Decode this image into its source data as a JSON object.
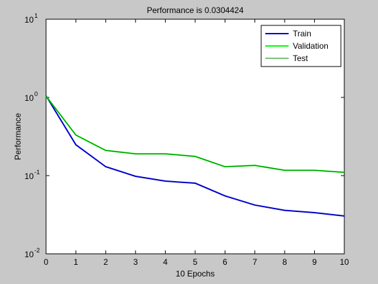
{
  "chart_data": {
    "type": "line",
    "title": "Performance is 0.0304424",
    "x_label": "10 Epochs",
    "y_label": "Performance",
    "x": [
      0,
      1,
      2,
      3,
      4,
      5,
      6,
      7,
      8,
      9,
      10
    ],
    "series": [
      {
        "name": "Train",
        "color": "#0000cc",
        "width": 2,
        "values": [
          1.05,
          0.248,
          0.13,
          0.098,
          0.085,
          0.08,
          0.055,
          0.042,
          0.036,
          0.0336,
          0.0304424
        ]
      },
      {
        "name": "Validation",
        "color": "#00ff00",
        "width": 2,
        "values": [
          1.04,
          0.33,
          0.21,
          0.19,
          0.19,
          0.176,
          0.13,
          0.135,
          0.117,
          0.117,
          0.11
        ]
      },
      {
        "name": "Test",
        "color": "#008000",
        "width": 1,
        "values": [
          1.04,
          0.33,
          0.21,
          0.19,
          0.19,
          0.176,
          0.13,
          0.135,
          0.117,
          0.117,
          0.11
        ]
      }
    ],
    "xlim": [
      0,
      10
    ],
    "xticks": [
      0,
      1,
      2,
      3,
      4,
      5,
      6,
      7,
      8,
      9,
      10
    ],
    "ylim": [
      0.01,
      10
    ],
    "yticks": [
      {
        "value": 0.01,
        "label": "10",
        "exponent": "-2"
      },
      {
        "value": 0.1,
        "label": "10",
        "exponent": "-1"
      },
      {
        "value": 1,
        "label": "10",
        "exponent": "0"
      },
      {
        "value": 10,
        "label": "10",
        "exponent": "1"
      }
    ],
    "y_log": true,
    "grid": false,
    "legend": "upper right"
  }
}
